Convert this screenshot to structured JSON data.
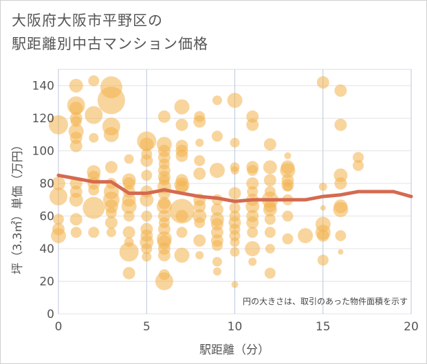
{
  "title_line1": "大阪府大阪市平野区の",
  "title_line2": "駅距離別中古マンション価格",
  "chart_data": {
    "type": "scatter",
    "xlabel": "駅距離（分）",
    "ylabel": "坪（3.3㎡）単価（万円）",
    "xlim": [
      0,
      20
    ],
    "ylim": [
      0,
      150
    ],
    "xticks": [
      0,
      5,
      10,
      15,
      20
    ],
    "yticks": [
      0,
      20,
      40,
      60,
      80,
      100,
      120,
      140
    ],
    "grid": true,
    "note": "円の大きさは、取引のあった物件面積を示す",
    "bubble_color": "#f2b24c",
    "line_color": "#d46a50",
    "points": [
      [
        0,
        116,
        14
      ],
      [
        0,
        80,
        10
      ],
      [
        0,
        72,
        13
      ],
      [
        0,
        58,
        8
      ],
      [
        0,
        52,
        9
      ],
      [
        0,
        48,
        11
      ],
      [
        1,
        140,
        10
      ],
      [
        1,
        128,
        13
      ],
      [
        1,
        126,
        10
      ],
      [
        1,
        120,
        9
      ],
      [
        1,
        118,
        8
      ],
      [
        1,
        112,
        11
      ],
      [
        1,
        108,
        9
      ],
      [
        1,
        103,
        9
      ],
      [
        1,
        80,
        9
      ],
      [
        1,
        75,
        9
      ],
      [
        1,
        70,
        10
      ],
      [
        1,
        58,
        9
      ],
      [
        1,
        50,
        8
      ],
      [
        2,
        143,
        8
      ],
      [
        2,
        122,
        13
      ],
      [
        2,
        108,
        7
      ],
      [
        2,
        87,
        10
      ],
      [
        2,
        84,
        9
      ],
      [
        2,
        80,
        9
      ],
      [
        2,
        76,
        8
      ],
      [
        2,
        65,
        16
      ],
      [
        2,
        50,
        8
      ],
      [
        3,
        139,
        16
      ],
      [
        3,
        131,
        20
      ],
      [
        3,
        115,
        13
      ],
      [
        3,
        110,
        11
      ],
      [
        3,
        90,
        9
      ],
      [
        3,
        80,
        8
      ],
      [
        3,
        75,
        11
      ],
      [
        3,
        70,
        12
      ],
      [
        3,
        66,
        10
      ],
      [
        3,
        62,
        8
      ],
      [
        3,
        56,
        9
      ],
      [
        3,
        50,
        7
      ],
      [
        4,
        95,
        7
      ],
      [
        4,
        82,
        10
      ],
      [
        4,
        80,
        9
      ],
      [
        4,
        75,
        9
      ],
      [
        4,
        70,
        10
      ],
      [
        4,
        66,
        11
      ],
      [
        4,
        60,
        8
      ],
      [
        4,
        50,
        9
      ],
      [
        4,
        44,
        7
      ],
      [
        4,
        38,
        14
      ],
      [
        4,
        25,
        9
      ],
      [
        5,
        106,
        14
      ],
      [
        5,
        104,
        10
      ],
      [
        5,
        98,
        8
      ],
      [
        5,
        94,
        9
      ],
      [
        5,
        85,
        8
      ],
      [
        5,
        75,
        9
      ],
      [
        5,
        70,
        10
      ],
      [
        5,
        60,
        8
      ],
      [
        5,
        52,
        9
      ],
      [
        5,
        48,
        9
      ],
      [
        5,
        44,
        10
      ],
      [
        5,
        40,
        8
      ],
      [
        5,
        35,
        7
      ],
      [
        6,
        121,
        9
      ],
      [
        6,
        104,
        11
      ],
      [
        6,
        100,
        9
      ],
      [
        6,
        96,
        9
      ],
      [
        6,
        92,
        8
      ],
      [
        6,
        88,
        9
      ],
      [
        6,
        84,
        9
      ],
      [
        6,
        82,
        8
      ],
      [
        6,
        78,
        10
      ],
      [
        6,
        74,
        9
      ],
      [
        6,
        68,
        9
      ],
      [
        6,
        66,
        11
      ],
      [
        6,
        60,
        9
      ],
      [
        6,
        56,
        8
      ],
      [
        6,
        52,
        9
      ],
      [
        6,
        46,
        11
      ],
      [
        6,
        44,
        10
      ],
      [
        6,
        40,
        9
      ],
      [
        6,
        36,
        9
      ],
      [
        6,
        24,
        8
      ],
      [
        6,
        20,
        13
      ],
      [
        7,
        127,
        11
      ],
      [
        7,
        116,
        9
      ],
      [
        7,
        103,
        9
      ],
      [
        7,
        100,
        9
      ],
      [
        7,
        97,
        9
      ],
      [
        7,
        82,
        9
      ],
      [
        7,
        79,
        11
      ],
      [
        7,
        78,
        9
      ],
      [
        7,
        63,
        18
      ],
      [
        7,
        60,
        9
      ],
      [
        7,
        50,
        8
      ],
      [
        7,
        36,
        11
      ],
      [
        8,
        121,
        8
      ],
      [
        8,
        118,
        9
      ],
      [
        8,
        105,
        6
      ],
      [
        8,
        94,
        8
      ],
      [
        8,
        86,
        9
      ],
      [
        8,
        70,
        9
      ],
      [
        8,
        66,
        9
      ],
      [
        8,
        60,
        10
      ],
      [
        8,
        56,
        8
      ],
      [
        8,
        45,
        9
      ],
      [
        8,
        36,
        6
      ],
      [
        9,
        131,
        7
      ],
      [
        9,
        109,
        8
      ],
      [
        9,
        88,
        11
      ],
      [
        9,
        70,
        8
      ],
      [
        9,
        64,
        9
      ],
      [
        9,
        58,
        10
      ],
      [
        9,
        55,
        9
      ],
      [
        9,
        50,
        9
      ],
      [
        9,
        45,
        9
      ],
      [
        9,
        42,
        8
      ],
      [
        9,
        32,
        7
      ],
      [
        9,
        26,
        6
      ],
      [
        10,
        131,
        11
      ],
      [
        10,
        105,
        7
      ],
      [
        10,
        90,
        7
      ],
      [
        10,
        88,
        6
      ],
      [
        10,
        74,
        9
      ],
      [
        10,
        65,
        8
      ],
      [
        10,
        60,
        8
      ],
      [
        10,
        56,
        9
      ],
      [
        10,
        52,
        8
      ],
      [
        10,
        48,
        8
      ],
      [
        10,
        44,
        7
      ],
      [
        10,
        38,
        7
      ],
      [
        10,
        18,
        5
      ],
      [
        11,
        121,
        9
      ],
      [
        11,
        116,
        9
      ],
      [
        11,
        90,
        9
      ],
      [
        11,
        88,
        8
      ],
      [
        11,
        80,
        9
      ],
      [
        11,
        75,
        8
      ],
      [
        11,
        70,
        9
      ],
      [
        11,
        66,
        10
      ],
      [
        11,
        60,
        9
      ],
      [
        11,
        56,
        9
      ],
      [
        11,
        50,
        8
      ],
      [
        11,
        40,
        11
      ],
      [
        11,
        32,
        6
      ],
      [
        12,
        104,
        9
      ],
      [
        12,
        90,
        10
      ],
      [
        12,
        82,
        9
      ],
      [
        12,
        75,
        8
      ],
      [
        12,
        70,
        12
      ],
      [
        12,
        66,
        9
      ],
      [
        12,
        64,
        10
      ],
      [
        12,
        58,
        8
      ],
      [
        12,
        50,
        8
      ],
      [
        12,
        40,
        7
      ],
      [
        12,
        25,
        8
      ],
      [
        13,
        97,
        5
      ],
      [
        13,
        90,
        10
      ],
      [
        13,
        88,
        11
      ],
      [
        13,
        82,
        9
      ],
      [
        13,
        79,
        9
      ],
      [
        13,
        78,
        7
      ],
      [
        13,
        70,
        8
      ],
      [
        13,
        60,
        8
      ],
      [
        13,
        46,
        8
      ],
      [
        14,
        48,
        11
      ],
      [
        15,
        142,
        9
      ],
      [
        15,
        78,
        6
      ],
      [
        15,
        65,
        4
      ],
      [
        15,
        55,
        11
      ],
      [
        15,
        50,
        11
      ],
      [
        15,
        48,
        9
      ],
      [
        15,
        33,
        8
      ],
      [
        16,
        137,
        9
      ],
      [
        16,
        116,
        9
      ],
      [
        16,
        85,
        10
      ],
      [
        16,
        80,
        9
      ],
      [
        16,
        66,
        10
      ],
      [
        16,
        64,
        11
      ],
      [
        16,
        48,
        8
      ],
      [
        16,
        38,
        4
      ],
      [
        17,
        96,
        8
      ],
      [
        17,
        91,
        8
      ]
    ],
    "trend": [
      [
        0,
        85
      ],
      [
        1,
        83
      ],
      [
        2,
        81
      ],
      [
        3,
        81
      ],
      [
        4,
        74
      ],
      [
        5,
        74
      ],
      [
        6,
        76
      ],
      [
        7,
        74
      ],
      [
        8,
        72
      ],
      [
        9,
        71
      ],
      [
        10,
        69
      ],
      [
        11,
        70
      ],
      [
        12,
        70
      ],
      [
        13,
        70
      ],
      [
        14,
        70
      ],
      [
        15,
        72
      ],
      [
        16,
        73
      ],
      [
        17,
        75
      ],
      [
        18,
        75
      ],
      [
        19,
        75
      ],
      [
        20,
        72
      ]
    ]
  }
}
